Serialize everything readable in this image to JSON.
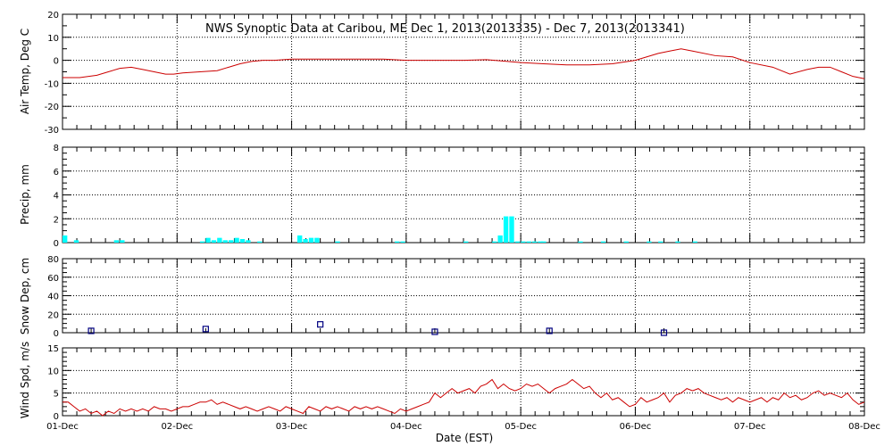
{
  "chart_data": [
    {
      "type": "line",
      "panel": "air_temp",
      "title": "NWS Synoptic Data at Caribou, ME   Dec  1, 2013(2013335) - Dec  7, 2013(2013341)",
      "ylabel": "Air Temp, Deg C",
      "ylim": [
        -30,
        20
      ],
      "yticks": [
        -30,
        -20,
        -10,
        0,
        10,
        20
      ],
      "grid": true,
      "color": "#cc0000",
      "x_unit": "days since 01-Dec",
      "x": [
        0,
        0.15,
        0.3,
        0.4,
        0.5,
        0.6,
        0.7,
        0.8,
        0.9,
        0.97,
        1.05,
        1.2,
        1.35,
        1.45,
        1.55,
        1.65,
        1.75,
        1.85,
        2.0,
        2.2,
        2.5,
        2.8,
        3.0,
        3.2,
        3.5,
        3.7,
        4.0,
        4.2,
        4.4,
        4.6,
        4.8,
        5.0,
        5.1,
        5.2,
        5.3,
        5.4,
        5.5,
        5.7,
        5.85,
        6.0,
        6.2,
        6.35,
        6.5,
        6.6,
        6.7,
        6.8,
        6.9,
        7.0
      ],
      "y": [
        -7.5,
        -7.5,
        -6.5,
        -5,
        -3.5,
        -3,
        -4,
        -5,
        -6,
        -6,
        -5.5,
        -5,
        -4.5,
        -3,
        -1.5,
        -0.5,
        0,
        0,
        0.5,
        0.5,
        0.5,
        0.5,
        0,
        0,
        0,
        0.3,
        -1,
        -1.5,
        -2,
        -2,
        -1.5,
        0,
        1.5,
        3,
        4,
        5,
        4,
        2,
        1.5,
        -1,
        -3,
        -6,
        -4,
        -3,
        -3,
        -5,
        -7,
        -8
      ]
    },
    {
      "type": "bar",
      "panel": "precip",
      "ylabel": "Precip, mm",
      "ylim": [
        0,
        8
      ],
      "yticks": [
        0,
        2,
        4,
        6,
        8
      ],
      "grid": true,
      "color": "#00ffff",
      "x_unit": "days since 01-Dec",
      "x": [
        0.0,
        0.1,
        0.45,
        0.5,
        1.2,
        1.25,
        1.3,
        1.35,
        1.4,
        1.45,
        1.5,
        1.55,
        1.6,
        1.7,
        2.05,
        2.1,
        2.15,
        2.2,
        2.38,
        2.9,
        2.95,
        3.5,
        3.75,
        3.8,
        3.85,
        3.9,
        3.95,
        4.0,
        4.05,
        4.1,
        4.15,
        4.18,
        4.5,
        4.7,
        4.9,
        5.1,
        5.2,
        5.35,
        5.5
      ],
      "values": [
        0.6,
        0.2,
        0.2,
        0.2,
        0.1,
        0.4,
        0.2,
        0.4,
        0.2,
        0.2,
        0.4,
        0.3,
        0.2,
        0.1,
        0.6,
        0.3,
        0.4,
        0.4,
        0.1,
        0.1,
        0.1,
        0.1,
        0.1,
        0.6,
        2.2,
        2.2,
        0.1,
        0.1,
        0.1,
        0.1,
        0.1,
        0.1,
        0.1,
        0.1,
        0.1,
        0.1,
        0.1,
        0.1,
        0.1
      ]
    },
    {
      "type": "scatter",
      "panel": "snow_depth",
      "ylabel": "Snow Dep, cm",
      "ylim": [
        0,
        80
      ],
      "yticks": [
        0,
        20,
        40,
        60,
        80
      ],
      "grid": true,
      "color": "#000080",
      "x_unit": "days since 01-Dec",
      "x": [
        0.25,
        1.25,
        2.25,
        3.25,
        4.25,
        5.25
      ],
      "values": [
        2,
        4,
        9,
        1,
        2,
        0
      ]
    },
    {
      "type": "line",
      "panel": "wind_speed",
      "ylabel": "Wind Spd, m/s",
      "xlabel": "Date (EST)",
      "ylim": [
        0,
        15
      ],
      "yticks": [
        0,
        5,
        10,
        15
      ],
      "grid": true,
      "color": "#cc0000",
      "x_unit": "days since 01-Dec",
      "x": [
        0,
        0.05,
        0.1,
        0.15,
        0.2,
        0.25,
        0.3,
        0.35,
        0.4,
        0.45,
        0.5,
        0.55,
        0.6,
        0.65,
        0.7,
        0.75,
        0.8,
        0.85,
        0.9,
        0.95,
        1.0,
        1.05,
        1.1,
        1.15,
        1.2,
        1.25,
        1.3,
        1.35,
        1.4,
        1.45,
        1.5,
        1.55,
        1.6,
        1.65,
        1.7,
        1.75,
        1.8,
        1.85,
        1.9,
        1.95,
        2.0,
        2.05,
        2.1,
        2.15,
        2.2,
        2.25,
        2.3,
        2.35,
        2.4,
        2.45,
        2.5,
        2.55,
        2.6,
        2.65,
        2.7,
        2.75,
        2.8,
        2.85,
        2.9,
        2.95,
        3.0,
        3.05,
        3.1,
        3.15,
        3.2,
        3.25,
        3.3,
        3.35,
        3.4,
        3.45,
        3.5,
        3.55,
        3.6,
        3.65,
        3.7,
        3.75,
        3.8,
        3.85,
        3.9,
        3.95,
        4.0,
        4.05,
        4.1,
        4.15,
        4.2,
        4.25,
        4.3,
        4.35,
        4.4,
        4.45,
        4.5,
        4.55,
        4.6,
        4.65,
        4.7,
        4.75,
        4.8,
        4.85,
        4.9,
        4.95,
        5.0,
        5.05,
        5.1,
        5.15,
        5.2,
        5.25,
        5.3,
        5.35,
        5.4,
        5.45,
        5.5,
        5.55,
        5.6,
        5.65,
        5.7,
        5.75,
        5.8,
        5.85,
        5.9,
        5.95,
        6.0,
        6.05,
        6.1,
        6.15,
        6.2,
        6.25,
        6.3,
        6.35,
        6.4,
        6.45,
        6.5,
        6.55,
        6.6,
        6.65,
        6.7,
        6.75,
        6.8,
        6.85,
        6.9,
        6.95,
        7.0
      ],
      "y": [
        3,
        3,
        2,
        1,
        1.5,
        0.5,
        1,
        0,
        1,
        0.5,
        1.5,
        1,
        1.5,
        1,
        1.5,
        1,
        2,
        1.5,
        1.5,
        1,
        1.5,
        2,
        2,
        2.5,
        3,
        3,
        3.5,
        2.5,
        3,
        2.5,
        2,
        1.5,
        2,
        1.5,
        1,
        1.5,
        2,
        1.5,
        1,
        2,
        1.5,
        1,
        0.5,
        2,
        1.5,
        1,
        2,
        1.5,
        2,
        1.5,
        1,
        2,
        1.5,
        2,
        1.5,
        2,
        1.5,
        1,
        0.5,
        1.5,
        1,
        1.5,
        2,
        2.5,
        3,
        5,
        4,
        5,
        6,
        5,
        5.5,
        6,
        5,
        6.5,
        7,
        8,
        6,
        7,
        6,
        5.5,
        6,
        7,
        6.5,
        7,
        6,
        5,
        6,
        6.5,
        7,
        8,
        7,
        6,
        6.5,
        5,
        4,
        5,
        3.5,
        4,
        3,
        2,
        2.5,
        4,
        3,
        3.5,
        4,
        5,
        3,
        4.5,
        5,
        6,
        5.5,
        6,
        5,
        4.5,
        4,
        3.5,
        4,
        3,
        4,
        3.5,
        3,
        3.5,
        4,
        3,
        4,
        3.5,
        5,
        4,
        4.5,
        3.5,
        4,
        5,
        5.5,
        4.5,
        5,
        4.5,
        4,
        5,
        3.5,
        2.5,
        3
      ]
    }
  ],
  "x_axis": {
    "ticks": [
      "01-Dec",
      "02-Dec",
      "03-Dec",
      "04-Dec",
      "05-Dec",
      "06-Dec",
      "07-Dec",
      "08-Dec"
    ],
    "xlim": [
      0,
      7
    ]
  }
}
